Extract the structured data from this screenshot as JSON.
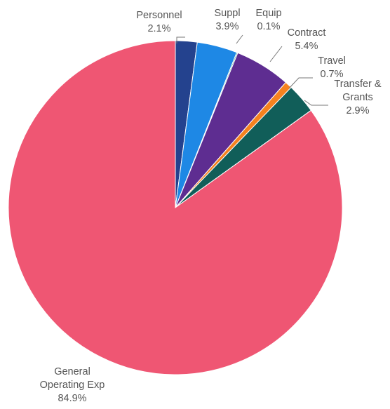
{
  "chart_data": {
    "type": "pie",
    "start_angle_deg": 0,
    "direction": "clockwise",
    "slices": [
      {
        "label_lines": [
          "Personnel"
        ],
        "value_label": "2.1%",
        "value": 2.1,
        "color": "#24428e"
      },
      {
        "label_lines": [
          "Suppl"
        ],
        "value_label": "3.9%",
        "value": 3.9,
        "color": "#1e88e5"
      },
      {
        "label_lines": [
          "Equip"
        ],
        "value_label": "0.1%",
        "value": 0.1,
        "color": "#1a9e82"
      },
      {
        "label_lines": [
          "Contract"
        ],
        "value_label": "5.4%",
        "value": 5.4,
        "color": "#5e2d91"
      },
      {
        "label_lines": [
          "Travel"
        ],
        "value_label": "0.7%",
        "value": 0.7,
        "color": "#f5821f"
      },
      {
        "label_lines": [
          "Transfer &",
          "Grants"
        ],
        "value_label": "2.9%",
        "value": 2.9,
        "color": "#115e59"
      },
      {
        "label_lines": [
          "General",
          "Operating Exp"
        ],
        "value_label": "84.9%",
        "value": 84.9,
        "color": "#ef5673"
      }
    ]
  }
}
